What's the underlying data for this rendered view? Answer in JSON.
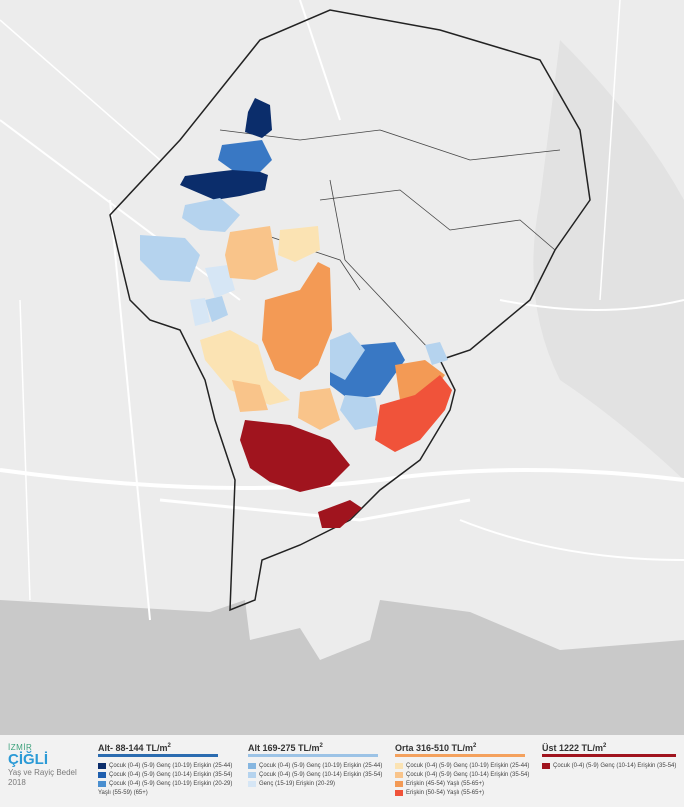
{
  "brand": {
    "city": "İZMİR",
    "district": "ÇİĞLİ",
    "subtitle": "Yaş ve Rayiç Bedel",
    "year": "2018"
  },
  "legend": [
    {
      "title": "Alt- 88-144 TL/m",
      "sup": "2",
      "color": "#2b6cb0",
      "items": [
        {
          "color": "#0b2d6b",
          "text": "Çocuk (0-4) (5-9) Genç (10-19) Erişkin (25-44)"
        },
        {
          "color": "#1f5fae",
          "text": "Çocuk (0-4) (5-9) Genç (10-14) Erişkin (35-54)"
        },
        {
          "color": "#4a8fd0",
          "text": "Çocuk (0-4) (5-9) Genç (10-19) Erişkin (20-29)"
        },
        {
          "color": "",
          "text": "Yaşlı (55-59) (65+)"
        }
      ]
    },
    {
      "title": "Alt 169-275 TL/m",
      "sup": "2",
      "color": "#9cc3e6",
      "items": [
        {
          "color": "#86b6e0",
          "text": "Çocuk (0-4) (5-9) Genç (10-19) Erişkin (25-44)"
        },
        {
          "color": "#b5d3ee",
          "text": "Çocuk (0-4) (5-9) Genç (10-14) Erişkin (35-54)"
        },
        {
          "color": "#d6e6f5",
          "text": "Genç (15-19) Erişkin (20-29)"
        }
      ]
    },
    {
      "title": "Orta 316-510 TL/m",
      "sup": "2",
      "color": "#f4a15d",
      "items": [
        {
          "color": "#fbe3b3",
          "text": "Çocuk (0-4) (5-9) Genç (10-19) Erişkin (25-44)"
        },
        {
          "color": "#f9c48a",
          "text": "Çocuk (0-4) (5-9) Genç (10-14) Erişkin (35-54)"
        },
        {
          "color": "#f39a55",
          "text": "Erişkin (45-54) Yaşlı (55-65+)"
        },
        {
          "color": "#f0533a",
          "text": "Erişkin (50-54) Yaşlı (55-65+)"
        }
      ]
    },
    {
      "title": "Üst 1222 TL/m",
      "sup": "2",
      "color": "#a0141e",
      "items": [
        {
          "color": "#a0141e",
          "text": "Çocuk (0-4) (5-9) Genç (10-14) Erişkin (35-54)"
        }
      ]
    }
  ]
}
